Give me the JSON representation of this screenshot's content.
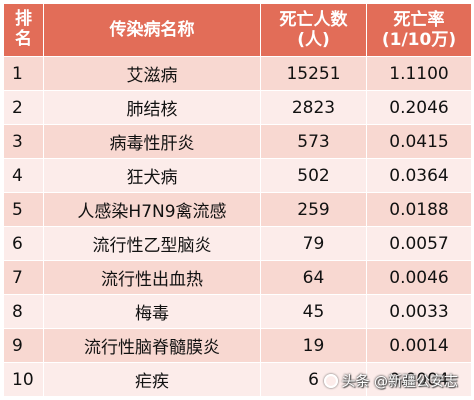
{
  "table": {
    "headers": {
      "rank": "排\n名",
      "disease": "传染病名称",
      "deaths": "死亡人数\n(人)",
      "rate": "死亡率\n(1/10万)"
    },
    "rows": [
      {
        "rank": "1",
        "disease": "艾滋病",
        "deaths": "15251",
        "rate": "1.1100"
      },
      {
        "rank": "2",
        "disease": "肺结核",
        "deaths": "2823",
        "rate": "0.2046"
      },
      {
        "rank": "3",
        "disease": "病毒性肝炎",
        "deaths": "573",
        "rate": "0.0415"
      },
      {
        "rank": "4",
        "disease": "狂犬病",
        "deaths": "502",
        "rate": "0.0364"
      },
      {
        "rank": "5",
        "disease": "人感染H7N9禽流感",
        "deaths": "259",
        "rate": "0.0188"
      },
      {
        "rank": "6",
        "disease": "流行性乙型脑炎",
        "deaths": "79",
        "rate": "0.0057"
      },
      {
        "rank": "7",
        "disease": "流行性出血热",
        "deaths": "64",
        "rate": "0.0046"
      },
      {
        "rank": "8",
        "disease": "梅毒",
        "deaths": "45",
        "rate": "0.0033"
      },
      {
        "rank": "9",
        "disease": "流行性脑脊髓膜炎",
        "deaths": "19",
        "rate": "0.0014"
      },
      {
        "rank": "10",
        "disease": "疟疾",
        "deaths": "6",
        "rate": "0.0004"
      }
    ]
  },
  "watermark": {
    "text": "头条 @新疆公安志",
    "icon": "circle-logo-icon"
  },
  "colors": {
    "header_bg": "#e26d58",
    "row_odd_bg": "#f8d8d1",
    "row_even_bg": "#fcecea"
  }
}
